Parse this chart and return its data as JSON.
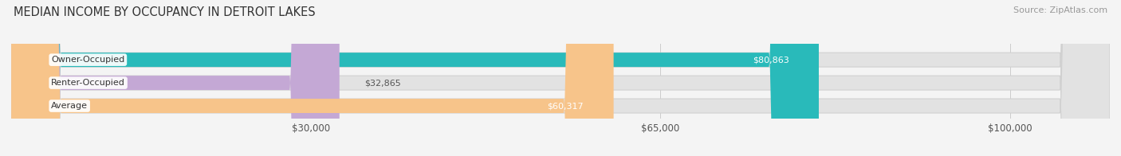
{
  "title": "MEDIAN INCOME BY OCCUPANCY IN DETROIT LAKES",
  "source": "Source: ZipAtlas.com",
  "categories": [
    "Owner-Occupied",
    "Renter-Occupied",
    "Average"
  ],
  "values": [
    80863,
    32865,
    60317
  ],
  "bar_colors": [
    "#29baba",
    "#c4a8d5",
    "#f7c48a"
  ],
  "value_labels": [
    "$80,863",
    "$32,865",
    "$60,317"
  ],
  "xlim": [
    0,
    110000
  ],
  "xticks": [
    30000,
    65000,
    100000
  ],
  "xtick_labels": [
    "$30,000",
    "$65,000",
    "$100,000"
  ],
  "background_color": "#f4f4f4",
  "bar_bg_color": "#e2e2e2",
  "bar_border_color": "#d0d0d0",
  "title_fontsize": 10.5,
  "source_fontsize": 8,
  "bar_height": 0.62,
  "grid_color": "#cccccc"
}
